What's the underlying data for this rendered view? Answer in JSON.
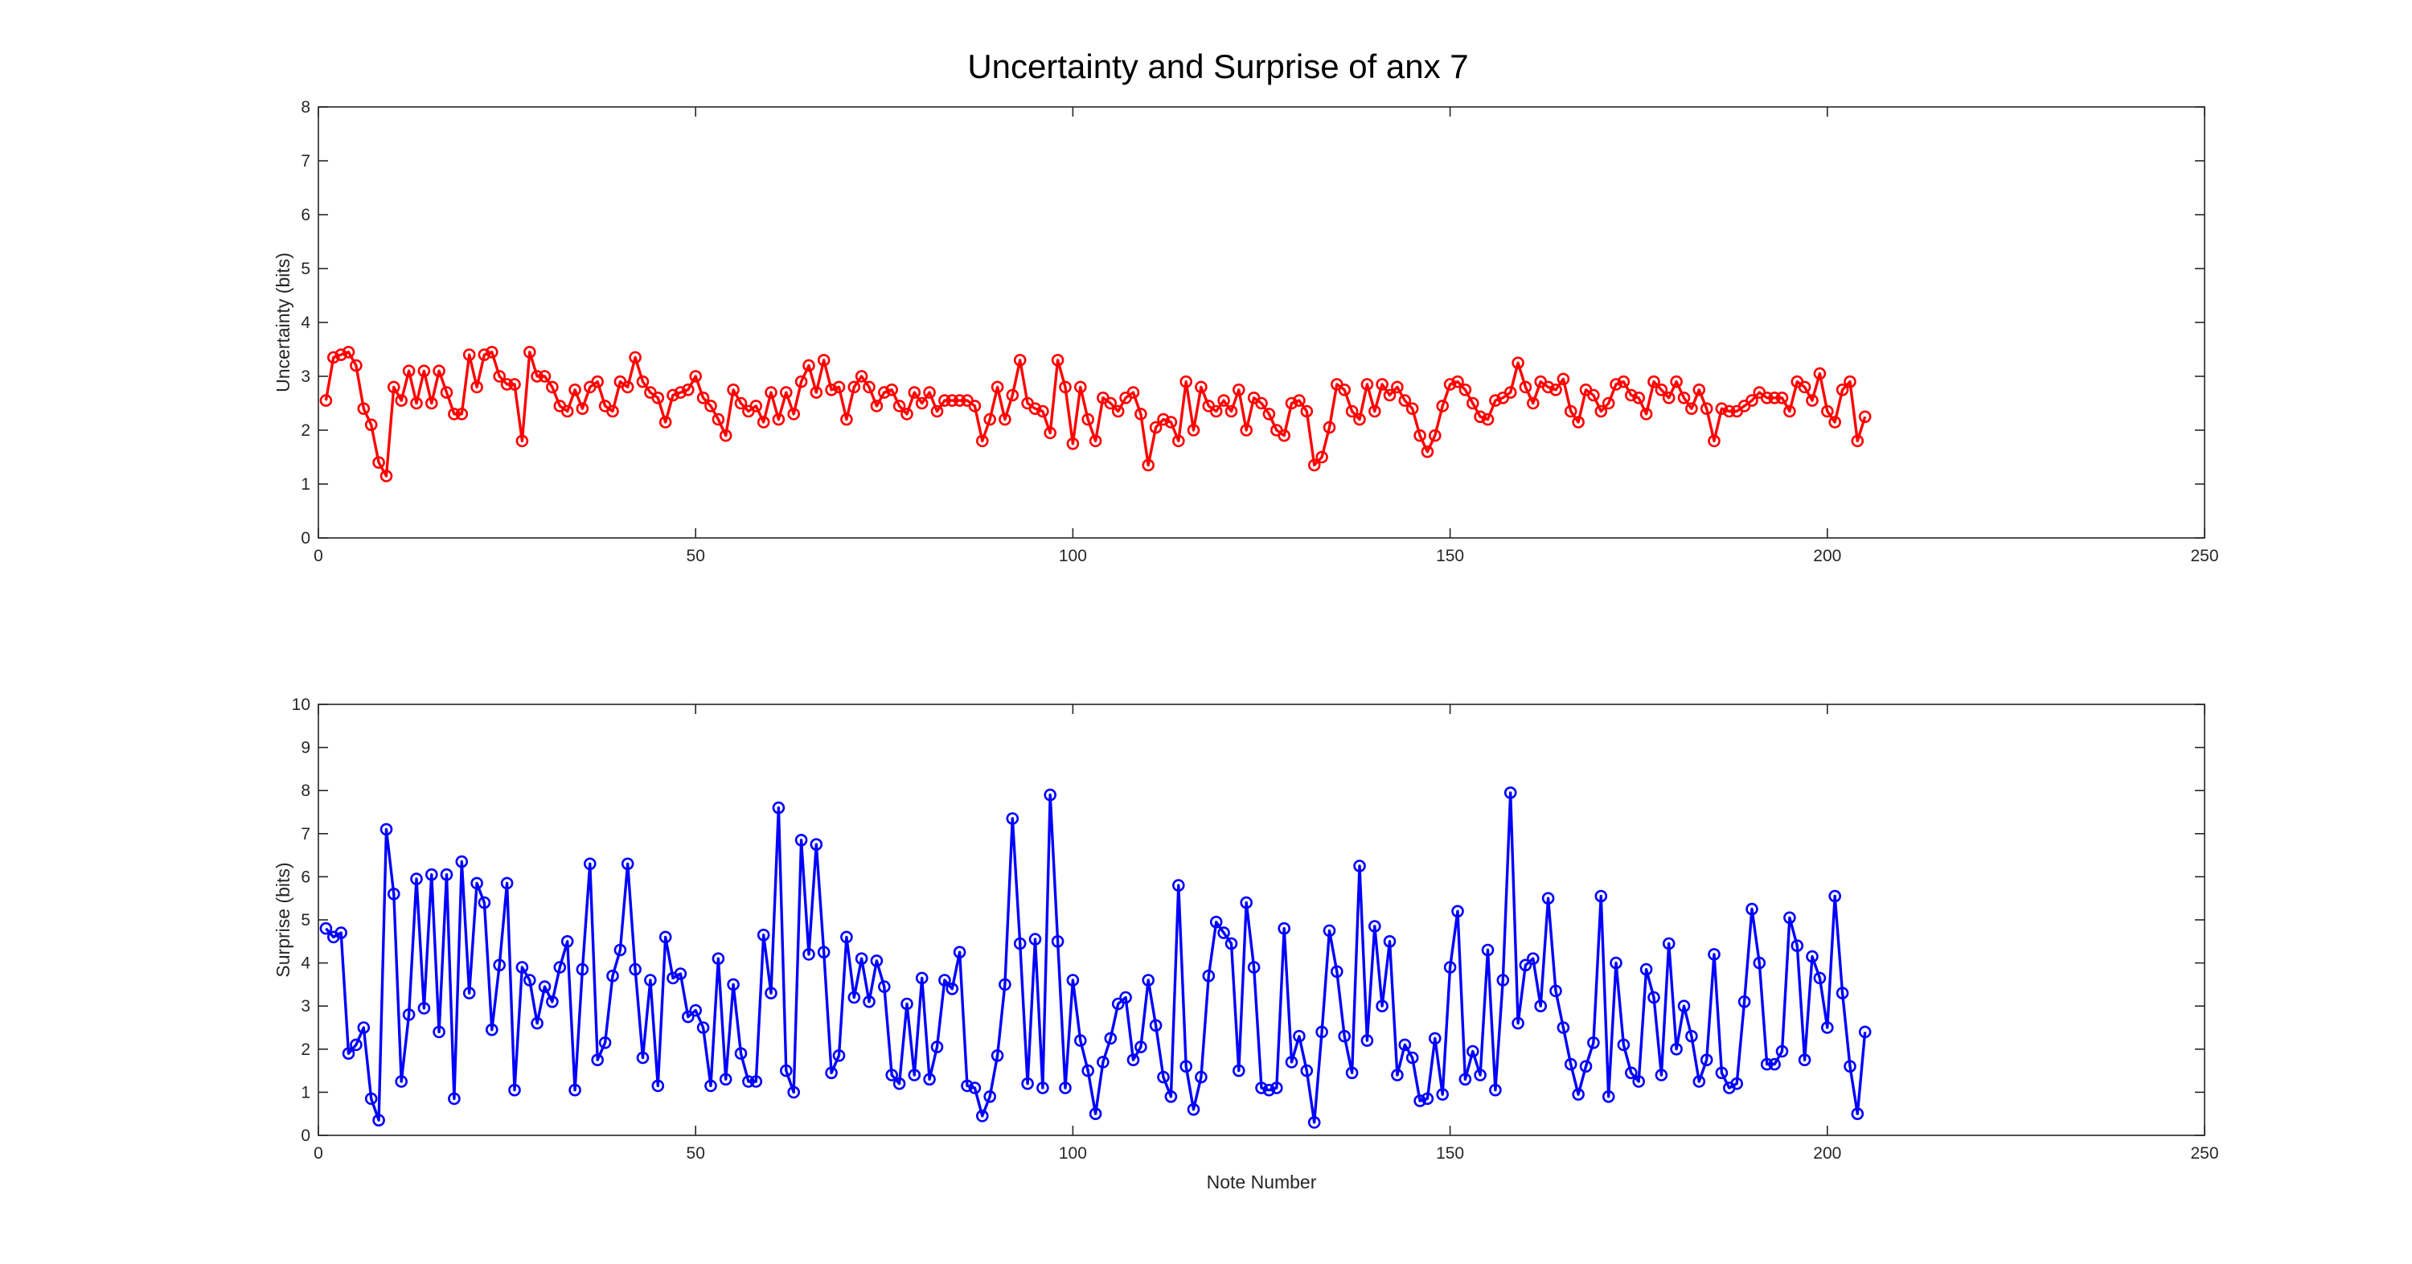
{
  "title": "Uncertainty and Surprise of anx 7",
  "chart_data": [
    {
      "type": "line",
      "ylabel": "Uncertainty (bits)",
      "xlabel": "",
      "xlim": [
        0,
        250
      ],
      "ylim": [
        0,
        8
      ],
      "xticks": [
        0,
        50,
        100,
        150,
        200,
        250
      ],
      "yticks": [
        0,
        1,
        2,
        3,
        4,
        5,
        6,
        7,
        8
      ],
      "marker": "circle",
      "grid": false,
      "series": [
        {
          "color": "#ff0000",
          "x_start": 1,
          "values": [
            2.55,
            3.35,
            3.4,
            3.45,
            3.2,
            2.4,
            2.1,
            1.4,
            1.15,
            2.8,
            2.55,
            3.1,
            2.5,
            3.1,
            2.5,
            3.1,
            2.7,
            2.3,
            2.3,
            3.4,
            2.8,
            3.4,
            3.45,
            3.0,
            2.85,
            2.85,
            1.8,
            3.45,
            3.0,
            3.0,
            2.8,
            2.45,
            2.35,
            2.75,
            2.4,
            2.8,
            2.9,
            2.45,
            2.35,
            2.9,
            2.8,
            3.35,
            2.9,
            2.7,
            2.6,
            2.15,
            2.65,
            2.7,
            2.75,
            3.0,
            2.6,
            2.45,
            2.2,
            1.9,
            2.75,
            2.5,
            2.35,
            2.45,
            2.15,
            2.7,
            2.2,
            2.7,
            2.3,
            2.9,
            3.2,
            2.7,
            3.3,
            2.75,
            2.8,
            2.2,
            2.8,
            3.0,
            2.8,
            2.45,
            2.7,
            2.75,
            2.45,
            2.3,
            2.7,
            2.5,
            2.7,
            2.35,
            2.55,
            2.55,
            2.55,
            2.55,
            2.45,
            1.8,
            2.2,
            2.8,
            2.2,
            2.65,
            3.3,
            2.5,
            2.4,
            2.35,
            1.95,
            3.3,
            2.8,
            1.75,
            2.8,
            2.2,
            1.8,
            2.6,
            2.5,
            2.35,
            2.6,
            2.7,
            2.3,
            1.35,
            2.05,
            2.2,
            2.15,
            1.8,
            2.9,
            2.0,
            2.8,
            2.45,
            2.35,
            2.55,
            2.35,
            2.75,
            2.0,
            2.6,
            2.5,
            2.3,
            2.0,
            1.9,
            2.5,
            2.55,
            2.35,
            1.35,
            1.5,
            2.05,
            2.85,
            2.75,
            2.35,
            2.2,
            2.85,
            2.35,
            2.85,
            2.65,
            2.8,
            2.55,
            2.4,
            1.9,
            1.6,
            1.9,
            2.45,
            2.85,
            2.9,
            2.75,
            2.5,
            2.25,
            2.2,
            2.55,
            2.6,
            2.7,
            3.25,
            2.8,
            2.5,
            2.9,
            2.8,
            2.75,
            2.95,
            2.35,
            2.15,
            2.75,
            2.65,
            2.35,
            2.5,
            2.85,
            2.9,
            2.65,
            2.6,
            2.3,
            2.9,
            2.75,
            2.6,
            2.9,
            2.6,
            2.4,
            2.75,
            2.4,
            1.8,
            2.4,
            2.35,
            2.35,
            2.45,
            2.55,
            2.7,
            2.6,
            2.6,
            2.6,
            2.35,
            2.9,
            2.8,
            2.55,
            3.05,
            2.35,
            2.15,
            2.75,
            2.9,
            1.8,
            2.25
          ]
        }
      ]
    },
    {
      "type": "line",
      "ylabel": "Surprise (bits)",
      "xlabel": "Note Number",
      "xlim": [
        0,
        250
      ],
      "ylim": [
        0,
        10
      ],
      "xticks": [
        0,
        50,
        100,
        150,
        200,
        250
      ],
      "yticks": [
        0,
        1,
        2,
        3,
        4,
        5,
        6,
        7,
        8,
        9,
        10
      ],
      "marker": "circle",
      "grid": false,
      "series": [
        {
          "color": "#0000ff",
          "x_start": 1,
          "values": [
            4.8,
            4.6,
            4.7,
            1.9,
            2.1,
            2.5,
            0.85,
            0.35,
            7.1,
            5.6,
            1.25,
            2.8,
            5.95,
            2.95,
            6.05,
            2.4,
            6.05,
            0.85,
            6.35,
            3.3,
            5.85,
            5.4,
            2.45,
            3.95,
            5.85,
            1.05,
            3.9,
            3.6,
            2.6,
            3.45,
            3.1,
            3.9,
            4.5,
            1.05,
            3.85,
            6.3,
            1.75,
            2.15,
            3.7,
            4.3,
            6.3,
            3.85,
            1.8,
            3.6,
            1.15,
            4.6,
            3.65,
            3.75,
            2.75,
            2.9,
            2.5,
            1.15,
            4.1,
            1.3,
            3.5,
            1.9,
            1.25,
            1.25,
            4.65,
            3.3,
            7.6,
            1.5,
            1.0,
            6.85,
            4.2,
            6.75,
            4.25,
            1.45,
            1.85,
            4.6,
            3.2,
            4.1,
            3.1,
            4.05,
            3.45,
            1.4,
            1.2,
            3.05,
            1.4,
            3.65,
            1.3,
            2.05,
            3.6,
            3.4,
            4.25,
            1.15,
            1.1,
            0.45,
            0.9,
            1.85,
            3.5,
            7.35,
            4.45,
            1.2,
            4.55,
            1.1,
            7.9,
            4.5,
            1.1,
            3.6,
            2.2,
            1.5,
            0.5,
            1.7,
            2.25,
            3.05,
            3.2,
            1.75,
            2.05,
            3.6,
            2.55,
            1.35,
            0.9,
            5.8,
            1.6,
            0.6,
            1.35,
            3.7,
            4.95,
            4.7,
            4.45,
            1.5,
            5.4,
            3.9,
            1.1,
            1.05,
            1.1,
            4.8,
            1.7,
            2.3,
            1.5,
            0.3,
            2.4,
            4.75,
            3.8,
            2.3,
            1.45,
            6.25,
            2.2,
            4.85,
            3.0,
            4.5,
            1.4,
            2.1,
            1.8,
            0.8,
            0.85,
            2.25,
            0.95,
            3.9,
            5.2,
            1.3,
            1.95,
            1.4,
            4.3,
            1.05,
            3.6,
            7.95,
            2.6,
            3.95,
            4.1,
            3.0,
            5.5,
            3.35,
            2.5,
            1.65,
            0.95,
            1.6,
            2.15,
            5.55,
            0.9,
            4.0,
            2.1,
            1.45,
            1.25,
            3.85,
            3.2,
            1.4,
            4.45,
            2.0,
            3.0,
            2.3,
            1.25,
            1.75,
            4.2,
            1.45,
            1.1,
            1.2,
            3.1,
            5.25,
            4.0,
            1.65,
            1.65,
            1.95,
            5.05,
            4.4,
            1.75,
            4.15,
            3.65,
            2.5,
            5.55,
            3.3,
            1.6,
            0.5,
            2.4
          ]
        }
      ]
    }
  ]
}
